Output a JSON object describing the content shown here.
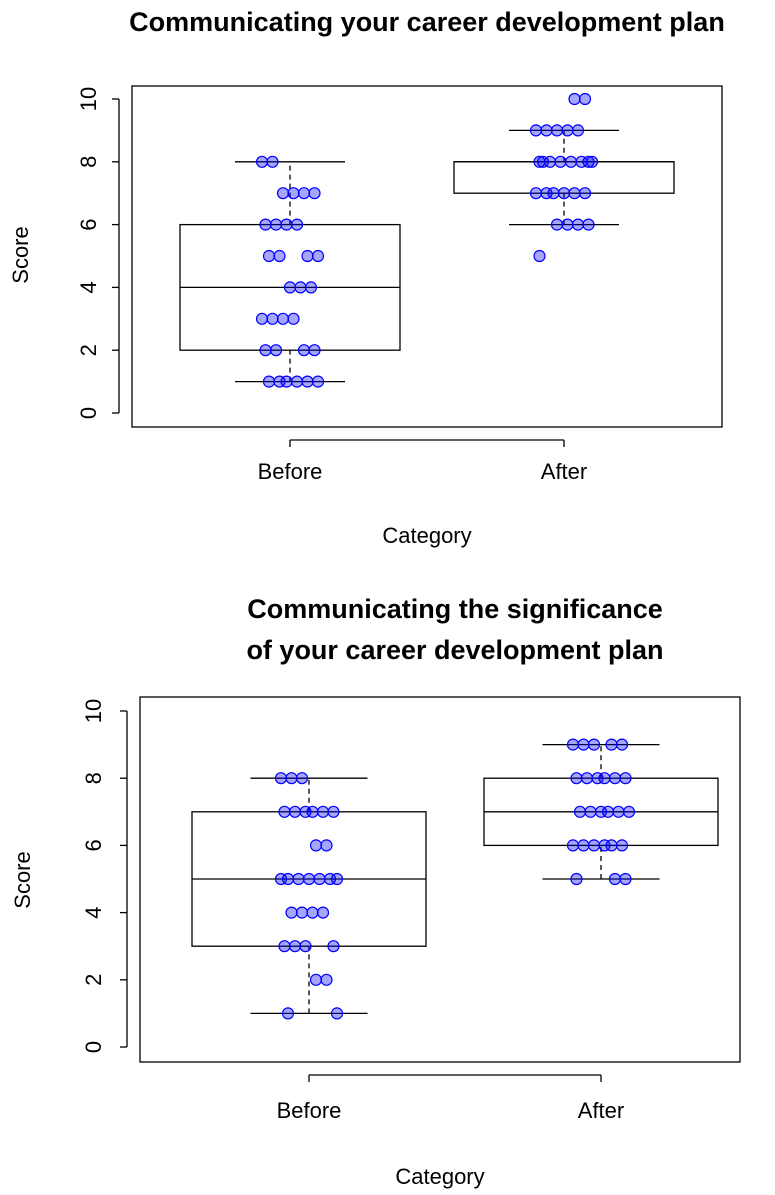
{
  "chart_data": [
    {
      "type": "box",
      "title": [
        "Communicating your career development plan"
      ],
      "xlabel": "Category",
      "ylabel": "Score",
      "categories": [
        "Before",
        "After"
      ],
      "boxes": [
        {
          "whisker_low": 1,
          "q1": 2,
          "median": 4,
          "q3": 6,
          "whisker_high": 8
        },
        {
          "whisker_low": 6,
          "q1": 7,
          "median": 8,
          "q3": 8,
          "whisker_high": 9
        }
      ],
      "points": [
        [
          8,
          8,
          7,
          7,
          7,
          7,
          6,
          6,
          6,
          6,
          5,
          5,
          5,
          5,
          4,
          4,
          4,
          3,
          3,
          3,
          3,
          2,
          2,
          2,
          2,
          1,
          1,
          1,
          1,
          1,
          1
        ],
        [
          10,
          10,
          9,
          9,
          9,
          9,
          9,
          8,
          8,
          8,
          8,
          8,
          8,
          8,
          8,
          7,
          7,
          7,
          7,
          7,
          7,
          6,
          6,
          6,
          6,
          5
        ]
      ],
      "point_color": "#0000ff",
      "ylim": [
        0,
        10
      ],
      "yticks": [
        0,
        2,
        4,
        6,
        8,
        10
      ]
    },
    {
      "type": "box",
      "title": [
        "Communicating the significance",
        "of your career development plan"
      ],
      "xlabel": "Category",
      "ylabel": "Score",
      "categories": [
        "Before",
        "After"
      ],
      "boxes": [
        {
          "whisker_low": 1,
          "q1": 3,
          "median": 5,
          "q3": 7,
          "whisker_high": 8
        },
        {
          "whisker_low": 5,
          "q1": 6,
          "median": 7,
          "q3": 8,
          "whisker_high": 9
        }
      ],
      "points": [
        [
          8,
          8,
          8,
          7,
          7,
          7,
          7,
          7,
          7,
          6,
          6,
          5,
          5,
          5,
          5,
          5,
          5,
          5,
          4,
          4,
          4,
          4,
          3,
          3,
          3,
          3,
          2,
          2,
          1,
          1
        ],
        [
          9,
          9,
          9,
          9,
          9,
          8,
          8,
          8,
          8,
          8,
          8,
          7,
          7,
          7,
          7,
          7,
          7,
          6,
          6,
          6,
          6,
          6,
          6,
          5,
          5,
          5
        ]
      ],
      "point_color": "#0000ff",
      "ylim": [
        0,
        10
      ],
      "yticks": [
        0,
        2,
        4,
        6,
        8,
        10
      ]
    }
  ]
}
